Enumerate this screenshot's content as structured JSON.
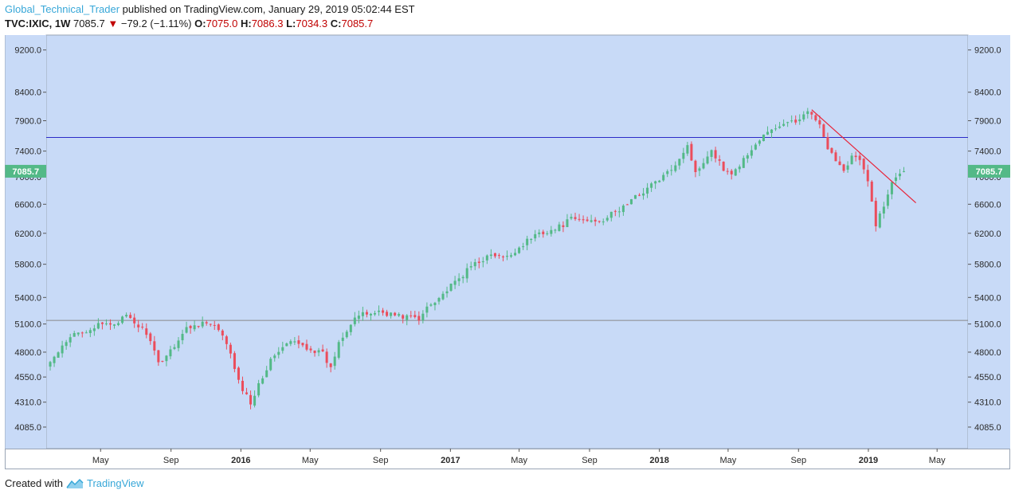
{
  "header": {
    "author": "Global_Technical_Trader",
    "published_text": "published on TradingView.com, January 29, 2019 05:02:44 EST",
    "symbol": "TVC:IXIC, 1W",
    "last": "7085.7",
    "change": "−79.2 (−1.11%)",
    "open_label": "O:",
    "open": "7075.0",
    "high_label": "H:",
    "high": "7086.3",
    "low_label": "L:",
    "low": "7034.3",
    "close_label": "C:",
    "close": "7085.7"
  },
  "footer": {
    "created_with": "Created with",
    "brand": "TradingView"
  },
  "colors": {
    "plot_bg": "#c8daf7",
    "up": "#53b987",
    "down": "#eb4d5c",
    "horizontal_blue": "#2b2bc8",
    "horizontal_gray": "#888888",
    "trendline": "#e8253a",
    "price_tag": "#53b987"
  },
  "chart_data": {
    "type": "candlestick",
    "title": "",
    "xlabel": "",
    "ylabel": "",
    "timeframe": "1W",
    "ylim": [
      3900,
      9500
    ],
    "y_scale": "log",
    "grid": false,
    "y_ticks": [
      4085.0,
      4310.0,
      4550.0,
      4800.0,
      5100.0,
      5400.0,
      5800.0,
      6200.0,
      6600.0,
      7000.0,
      7400.0,
      7900.0,
      8400.0,
      9200.0
    ],
    "y_tick_labels": [
      "4085.0",
      "4310.0",
      "4550.0",
      "4800.0",
      "5100.0",
      "5400.0",
      "5800.0",
      "6200.0",
      "6600.0",
      "7000.0",
      "7400.0",
      "7900.0",
      "8400.0",
      "9200.0"
    ],
    "x_ticks": [
      {
        "label": "May",
        "date": "2015-05-01",
        "bold": false
      },
      {
        "label": "Sep",
        "date": "2015-09-01",
        "bold": false
      },
      {
        "label": "2016",
        "date": "2016-01-01",
        "bold": true
      },
      {
        "label": "May",
        "date": "2016-05-01",
        "bold": false
      },
      {
        "label": "Sep",
        "date": "2016-09-01",
        "bold": false
      },
      {
        "label": "2017",
        "date": "2017-01-01",
        "bold": true
      },
      {
        "label": "May",
        "date": "2017-05-01",
        "bold": false
      },
      {
        "label": "Sep",
        "date": "2017-09-01",
        "bold": false
      },
      {
        "label": "2018",
        "date": "2018-01-01",
        "bold": true
      },
      {
        "label": "May",
        "date": "2018-05-01",
        "bold": false
      },
      {
        "label": "Sep",
        "date": "2018-09-01",
        "bold": false
      },
      {
        "label": "2019",
        "date": "2019-01-01",
        "bold": true
      },
      {
        "label": "May",
        "date": "2019-05-01",
        "bold": false
      }
    ],
    "x_range": [
      "2015-01-26",
      "2019-06-24"
    ],
    "last_price_label": "7085.7",
    "last_price": 7085.7,
    "horizontal_lines": [
      {
        "name": "resistance",
        "y": 7620,
        "color": "#2b2bc8"
      },
      {
        "name": "support",
        "y": 5140,
        "color": "#888888"
      }
    ],
    "trendline": {
      "from": [
        "2018-09-24",
        8090
      ],
      "to": [
        "2019-03-25",
        6620
      ],
      "color": "#e8253a"
    },
    "close_series": {
      "start_date": "2015-02-02",
      "anchors": [
        [
          0,
          4700
        ],
        [
          6,
          4990
        ],
        [
          12,
          5080
        ],
        [
          16,
          5110
        ],
        [
          19,
          5180
        ],
        [
          21,
          5110
        ],
        [
          24,
          5010
        ],
        [
          27,
          4680
        ],
        [
          30,
          4820
        ],
        [
          34,
          5050
        ],
        [
          38,
          5120
        ],
        [
          41,
          5070
        ],
        [
          44,
          4900
        ],
        [
          47,
          4500
        ],
        [
          50,
          4300
        ],
        [
          52,
          4490
        ],
        [
          56,
          4780
        ],
        [
          60,
          4910
        ],
        [
          64,
          4850
        ],
        [
          68,
          4780
        ],
        [
          70,
          4630
        ],
        [
          72,
          4910
        ],
        [
          76,
          5180
        ],
        [
          82,
          5240
        ],
        [
          88,
          5180
        ],
        [
          90,
          5190
        ],
        [
          92,
          5130
        ],
        [
          94,
          5300
        ],
        [
          98,
          5440
        ],
        [
          102,
          5620
        ],
        [
          106,
          5820
        ],
        [
          110,
          5910
        ],
        [
          114,
          5880
        ],
        [
          118,
          6060
        ],
        [
          122,
          6210
        ],
        [
          126,
          6250
        ],
        [
          130,
          6390
        ],
        [
          134,
          6370
        ],
        [
          138,
          6390
        ],
        [
          142,
          6520
        ],
        [
          146,
          6700
        ],
        [
          150,
          6880
        ],
        [
          154,
          7050
        ],
        [
          157,
          7300
        ],
        [
          159,
          7500
        ],
        [
          161,
          7050
        ],
        [
          163,
          7250
        ],
        [
          165,
          7430
        ],
        [
          167,
          7220
        ],
        [
          169,
          7050
        ],
        [
          171,
          7100
        ],
        [
          174,
          7350
        ],
        [
          178,
          7650
        ],
        [
          182,
          7820
        ],
        [
          186,
          7880
        ],
        [
          188,
          8050
        ],
        [
          190,
          8000
        ],
        [
          192,
          7800
        ],
        [
          194,
          7400
        ],
        [
          196,
          7280
        ],
        [
          198,
          7100
        ],
        [
          200,
          7330
        ],
        [
          202,
          7250
        ],
        [
          204,
          6920
        ],
        [
          206,
          6330
        ],
        [
          208,
          6560
        ],
        [
          210,
          6950
        ],
        [
          212,
          7090
        ],
        [
          213,
          7085.7
        ]
      ]
    }
  }
}
